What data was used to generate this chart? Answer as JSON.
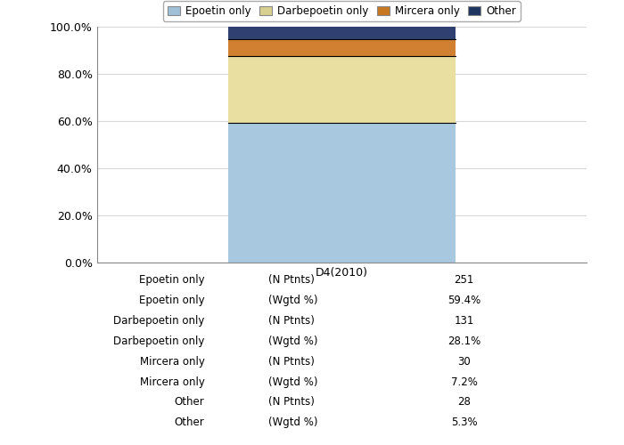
{
  "categories": [
    "D4(2010)"
  ],
  "series": [
    {
      "label": "Epoetin only",
      "values": [
        59.4
      ],
      "color_center": "#a8c8e0",
      "color_edge": "#6090b0"
    },
    {
      "label": "Darbepoetin only",
      "values": [
        28.1
      ],
      "color_center": "#e8dfa0",
      "color_edge": "#b8a860"
    },
    {
      "label": "Mircera only",
      "values": [
        7.2
      ],
      "color_center": "#d08030",
      "color_edge": "#a06010"
    },
    {
      "label": "Other",
      "values": [
        5.3
      ],
      "color_center": "#304070",
      "color_edge": "#102050"
    }
  ],
  "legend_colors": [
    "#a0c0d8",
    "#d8d090",
    "#c87820",
    "#1e3560"
  ],
  "yticks": [
    0.0,
    20.0,
    40.0,
    60.0,
    80.0,
    100.0
  ],
  "ylim": [
    0,
    100
  ],
  "table_rows": [
    [
      "Epoetin only",
      "(N Ptnts)",
      "251"
    ],
    [
      "Epoetin only",
      "(Wgtd %)",
      "59.4%"
    ],
    [
      "Darbepoetin only",
      "(N Ptnts)",
      "131"
    ],
    [
      "Darbepoetin only",
      "(Wgtd %)",
      "28.1%"
    ],
    [
      "Mircera only",
      "(N Ptnts)",
      "30"
    ],
    [
      "Mircera only",
      "(Wgtd %)",
      "7.2%"
    ],
    [
      "Other",
      "(N Ptnts)",
      "28"
    ],
    [
      "Other",
      "(Wgtd %)",
      "5.3%"
    ]
  ],
  "col_header": "D4(2010)",
  "figure_bg": "#ffffff",
  "plot_bg_color": "#ffffff",
  "grid_color": "#d8d8d8"
}
